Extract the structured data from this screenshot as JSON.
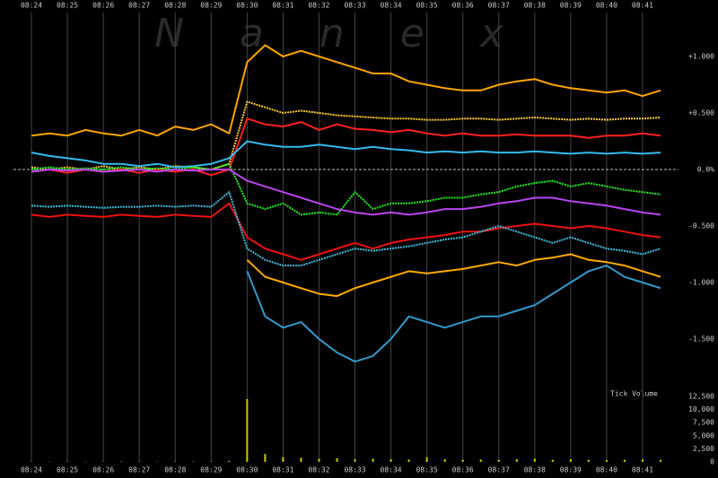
{
  "chart_data": {
    "type": "line",
    "watermark": "Nanex",
    "x": [
      24,
      24.5,
      25,
      25.5,
      26,
      26.5,
      27,
      27.5,
      28,
      28.5,
      29,
      29.5,
      30,
      30.5,
      31,
      31.5,
      32,
      32.5,
      33,
      33.5,
      34,
      34.5,
      35,
      35.5,
      36,
      36.5,
      37,
      37.5,
      38,
      38.5,
      39,
      39.5,
      40,
      40.5,
      41,
      41.5
    ],
    "xlim": [
      23.5,
      42
    ],
    "xticks": [
      {
        "value": 24,
        "label": "08:24"
      },
      {
        "value": 25,
        "label": "08:25"
      },
      {
        "value": 26,
        "label": "08:26"
      },
      {
        "value": 27,
        "label": "08:27"
      },
      {
        "value": 28,
        "label": "08:28"
      },
      {
        "value": 29,
        "label": "08:29"
      },
      {
        "value": 30,
        "label": "08:30"
      },
      {
        "value": 31,
        "label": "08:31"
      },
      {
        "value": 32,
        "label": "08:32"
      },
      {
        "value": 33,
        "label": "08:33"
      },
      {
        "value": 34,
        "label": "08:34"
      },
      {
        "value": 35,
        "label": "08:35"
      },
      {
        "value": 36,
        "label": "08:36"
      },
      {
        "value": 37,
        "label": "08:37"
      },
      {
        "value": 38,
        "label": "08:38"
      },
      {
        "value": 39,
        "label": "08:39"
      },
      {
        "value": 40,
        "label": "08:40"
      },
      {
        "value": 41,
        "label": "08:41"
      }
    ],
    "ylim": [
      -1.9,
      1.4
    ],
    "yticks": [
      {
        "value": 1,
        "label": "+1.000"
      },
      {
        "value": 0.5,
        "label": "+0.500"
      },
      {
        "value": 0,
        "label": "0.0%"
      },
      {
        "value": -0.5,
        "label": "-0.500"
      },
      {
        "value": -1,
        "label": "-1.000"
      },
      {
        "value": -1.5,
        "label": "-1.500"
      }
    ],
    "series": [
      {
        "color": "#ffa500",
        "values": [
          0.3,
          0.32,
          0.3,
          0.35,
          0.32,
          0.3,
          0.35,
          0.3,
          0.38,
          0.35,
          0.4,
          0.32,
          0.95,
          1.1,
          1.0,
          1.05,
          1.0,
          0.95,
          0.9,
          0.85,
          0.85,
          0.78,
          0.75,
          0.72,
          0.7,
          0.7,
          0.75,
          0.78,
          0.8,
          0.75,
          0.72,
          0.7,
          0.68,
          0.7,
          0.65,
          0.7
        ]
      },
      {
        "color": "#ffcc33",
        "values": [
          0.02,
          0.0,
          0.02,
          0.0,
          0.03,
          0.0,
          0.02,
          0.0,
          0.03,
          0.02,
          0.0,
          0.05,
          0.6,
          0.55,
          0.5,
          0.52,
          0.5,
          0.48,
          0.47,
          0.46,
          0.45,
          0.45,
          0.44,
          0.44,
          0.45,
          0.45,
          0.44,
          0.45,
          0.46,
          0.45,
          0.44,
          0.45,
          0.44,
          0.45,
          0.45,
          0.46
        ]
      },
      {
        "color": "#ff2020",
        "values": [
          -0.02,
          0,
          -0.03,
          0,
          -0.02,
          0,
          -0.03,
          0,
          -0.02,
          0,
          -0.05,
          0,
          0.45,
          0.4,
          0.38,
          0.42,
          0.35,
          0.4,
          0.36,
          0.35,
          0.33,
          0.35,
          0.32,
          0.3,
          0.32,
          0.3,
          0.3,
          0.31,
          0.3,
          0.3,
          0.3,
          0.28,
          0.3,
          0.3,
          0.32,
          0.3
        ]
      },
      {
        "color": "#33bbee",
        "values": [
          0.15,
          0.12,
          0.1,
          0.08,
          0.05,
          0.05,
          0.03,
          0.05,
          0.02,
          0.03,
          0.05,
          0.1,
          0.25,
          0.22,
          0.2,
          0.2,
          0.22,
          0.2,
          0.18,
          0.2,
          0.18,
          0.17,
          0.15,
          0.16,
          0.15,
          0.16,
          0.15,
          0.15,
          0.16,
          0.15,
          0.14,
          0.15,
          0.14,
          0.15,
          0.14,
          0.15
        ]
      },
      {
        "color": "#22ee22",
        "values": [
          0,
          0.02,
          0,
          0.01,
          0,
          0.02,
          0,
          0.01,
          0,
          0.02,
          0,
          0.05,
          -0.3,
          -0.35,
          -0.3,
          -0.4,
          -0.38,
          -0.4,
          -0.2,
          -0.35,
          -0.3,
          -0.3,
          -0.28,
          -0.25,
          -0.25,
          -0.22,
          -0.2,
          -0.15,
          -0.12,
          -0.1,
          -0.15,
          -0.12,
          -0.15,
          -0.18,
          -0.2,
          -0.22
        ]
      },
      {
        "color": "#bb44ee",
        "values": [
          -0.02,
          0,
          -0.01,
          0,
          -0.02,
          -0.01,
          0,
          -0.02,
          0,
          -0.01,
          0,
          0,
          -0.1,
          -0.15,
          -0.2,
          -0.25,
          -0.3,
          -0.35,
          -0.38,
          -0.4,
          -0.38,
          -0.4,
          -0.38,
          -0.35,
          -0.35,
          -0.33,
          -0.3,
          -0.28,
          -0.25,
          -0.25,
          -0.28,
          -0.3,
          -0.32,
          -0.35,
          -0.38,
          -0.4
        ]
      },
      {
        "color": "#ee1111",
        "values": [
          -0.4,
          -0.42,
          -0.4,
          -0.41,
          -0.42,
          -0.4,
          -0.41,
          -0.42,
          -0.4,
          -0.41,
          -0.42,
          -0.3,
          -0.6,
          -0.7,
          -0.75,
          -0.8,
          -0.75,
          -0.7,
          -0.65,
          -0.7,
          -0.65,
          -0.62,
          -0.6,
          -0.58,
          -0.55,
          -0.55,
          -0.52,
          -0.5,
          -0.48,
          -0.5,
          -0.52,
          -0.5,
          -0.52,
          -0.55,
          -0.58,
          -0.6
        ]
      },
      {
        "color": "#44bbdd",
        "values": [
          -0.32,
          -0.33,
          -0.32,
          -0.33,
          -0.34,
          -0.33,
          -0.33,
          -0.32,
          -0.33,
          -0.32,
          -0.33,
          -0.2,
          -0.7,
          -0.8,
          -0.85,
          -0.85,
          -0.8,
          -0.75,
          -0.7,
          -0.72,
          -0.7,
          -0.68,
          -0.65,
          -0.62,
          -0.6,
          -0.55,
          -0.5,
          -0.55,
          -0.6,
          -0.65,
          -0.6,
          -0.65,
          -0.7,
          -0.72,
          -0.75,
          -0.7
        ]
      },
      {
        "color": "#ffaa00",
        "values": [
          null,
          null,
          null,
          null,
          null,
          null,
          null,
          null,
          null,
          null,
          null,
          null,
          -0.8,
          -0.95,
          -1.0,
          -1.05,
          -1.1,
          -1.12,
          -1.05,
          -1.0,
          -0.95,
          -0.9,
          -0.92,
          -0.9,
          -0.88,
          -0.85,
          -0.82,
          -0.85,
          -0.8,
          -0.78,
          -0.75,
          -0.8,
          -0.82,
          -0.85,
          -0.9,
          -0.95
        ]
      },
      {
        "color": "#3399cc",
        "values": [
          null,
          null,
          null,
          null,
          null,
          null,
          null,
          null,
          null,
          null,
          null,
          null,
          -0.9,
          -1.3,
          -1.4,
          -1.35,
          -1.5,
          -1.62,
          -1.7,
          -1.65,
          -1.5,
          -1.3,
          -1.35,
          -1.4,
          -1.35,
          -1.3,
          -1.3,
          -1.25,
          -1.2,
          -1.1,
          -1.0,
          -0.9,
          -0.85,
          -0.95,
          -1.0,
          -1.05
        ]
      }
    ],
    "volume": {
      "title": "Tick Volume",
      "color": "#c8c800",
      "values": [
        50,
        40,
        60,
        50,
        40,
        80,
        60,
        50,
        70,
        60,
        80,
        200,
        12000,
        1500,
        900,
        800,
        600,
        700,
        500,
        600,
        500,
        450,
        900,
        500,
        400,
        450,
        400,
        500,
        600,
        400,
        500,
        400,
        350,
        400,
        450,
        400
      ],
      "ylim": [
        0,
        12500
      ],
      "yticks": [
        {
          "value": 12500,
          "label": "12,500"
        },
        {
          "value": 10000,
          "label": "10,000"
        },
        {
          "value": 7500,
          "label": "7,500"
        },
        {
          "value": 5000,
          "label": "5,000"
        },
        {
          "value": 2500,
          "label": "2,500"
        },
        0
      ]
    }
  }
}
